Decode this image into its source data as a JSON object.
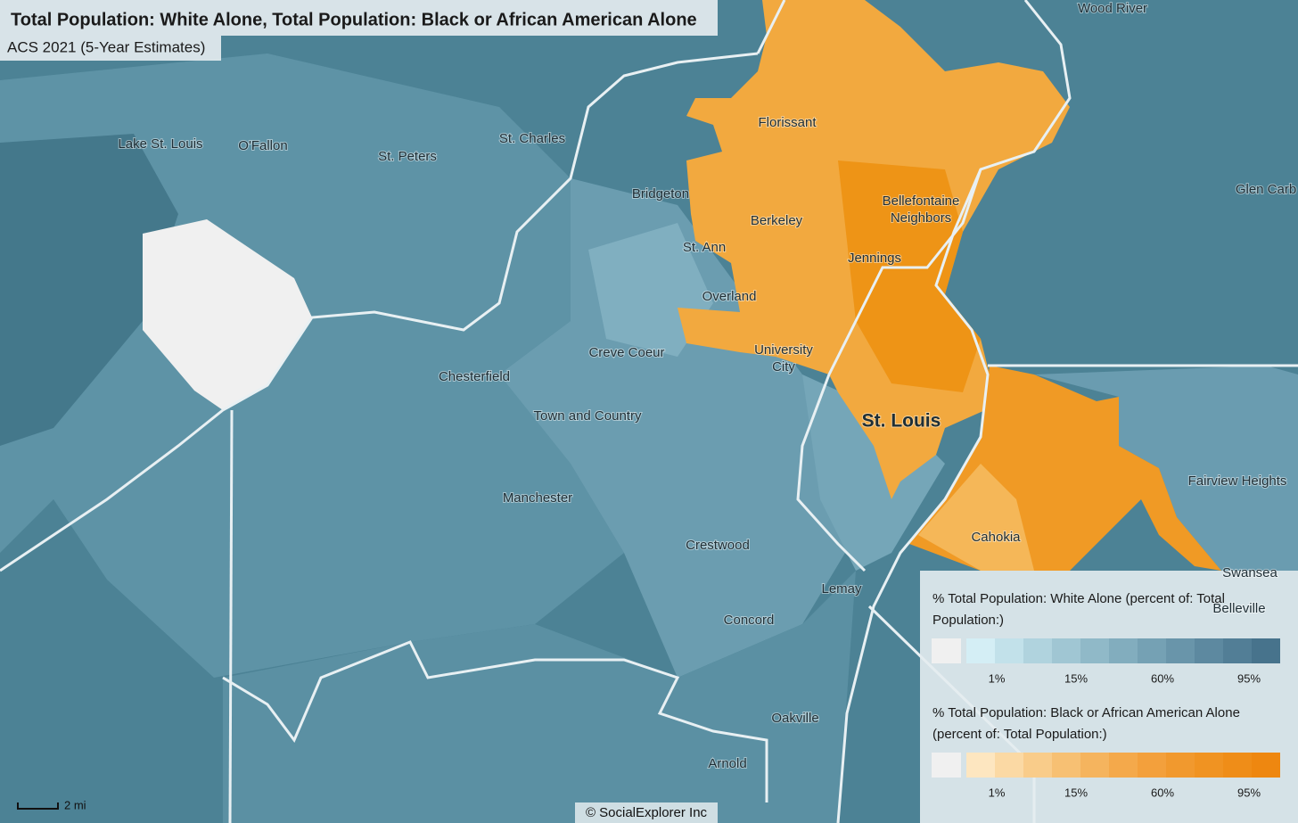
{
  "header": {
    "title": "Total Population: White Alone, Total Population: Black or African American Alone",
    "subtitle": "ACS 2021 (5-Year Estimates)"
  },
  "places": [
    {
      "lines": [
        "Wood River"
      ]
    },
    {
      "lines": [
        "Florissant"
      ]
    },
    {
      "lines": [
        "Lake St. Louis"
      ]
    },
    {
      "lines": [
        "O'Fallon"
      ]
    },
    {
      "lines": [
        "St. Charles"
      ]
    },
    {
      "lines": [
        "St. Peters"
      ]
    },
    {
      "lines": [
        "Glen Carb"
      ]
    },
    {
      "lines": [
        "Bridgeton"
      ]
    },
    {
      "lines": [
        "Bellefontaine",
        "Neighbors"
      ]
    },
    {
      "lines": [
        "Berkeley"
      ]
    },
    {
      "lines": [
        "St. Ann"
      ]
    },
    {
      "lines": [
        "Jennings"
      ]
    },
    {
      "lines": [
        "Overland"
      ]
    },
    {
      "lines": [
        "University",
        "City"
      ]
    },
    {
      "lines": [
        "Creve Coeur"
      ]
    },
    {
      "lines": [
        "Chesterfield"
      ]
    },
    {
      "lines": [
        "St. Louis"
      ]
    },
    {
      "lines": [
        "Town and Country"
      ]
    },
    {
      "lines": [
        "Fairview Heights"
      ]
    },
    {
      "lines": [
        "Manchester"
      ]
    },
    {
      "lines": [
        "Cahokia"
      ]
    },
    {
      "lines": [
        "Crestwood"
      ]
    },
    {
      "lines": [
        "Swansea"
      ]
    },
    {
      "lines": [
        "Lemay"
      ]
    },
    {
      "lines": [
        "Belleville"
      ]
    },
    {
      "lines": [
        "Concord"
      ]
    },
    {
      "lines": [
        "Oakville"
      ]
    },
    {
      "lines": [
        "Arnold"
      ]
    }
  ],
  "legend": [
    {
      "title": [
        "% Total Population: White Alone (percent of: Total",
        "Population:)"
      ],
      "colors": [
        "#f0f0f0",
        "#d4eef5",
        "#c2e1ea",
        "#b0d3de",
        "#a0c6d3",
        "#90b9c8",
        "#82adbe",
        "#75a1b4",
        "#6995aa",
        "#5d89a0",
        "#527e96",
        "#47738c"
      ],
      "labels": [
        "1%",
        "15%",
        "60%",
        "95%"
      ]
    },
    {
      "title": [
        "% Total Population: Black or African American Alone",
        "(percent of: Total Population:)"
      ],
      "colors": [
        "#f0f0f0",
        "#fde6c0",
        "#fbd9a4",
        "#f9cc8a",
        "#f7c073",
        "#f5b45e",
        "#f4a94b",
        "#f3a03c",
        "#f1992e",
        "#f09322",
        "#ef8d18",
        "#ee8710"
      ],
      "labels": [
        "1%",
        "15%",
        "60%",
        "95%"
      ]
    }
  ],
  "scale": {
    "label": "2 mi"
  },
  "credit": "© SocialExplorer Inc"
}
